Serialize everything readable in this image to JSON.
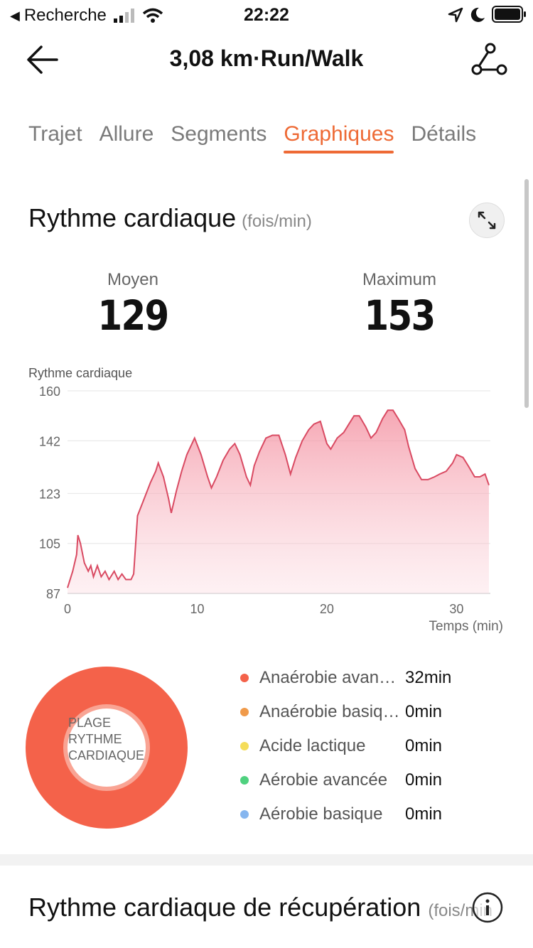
{
  "status_bar": {
    "back_app_label": "Recherche",
    "time": "22:22"
  },
  "header": {
    "title": "3,08 km·Run/Walk"
  },
  "tabs": [
    {
      "label": "Trajet"
    },
    {
      "label": "Allure"
    },
    {
      "label": "Segments"
    },
    {
      "label": "Graphiques"
    },
    {
      "label": "Détails"
    }
  ],
  "heart_rate": {
    "title": "Rythme cardiaque",
    "unit": "(fois/min)",
    "avg_label": "Moyen",
    "avg_value": "129",
    "max_label": "Maximum",
    "max_value": "153"
  },
  "chart_data": {
    "type": "area",
    "ylabel": "Rythme cardiaque",
    "xlabel": "Temps (min)",
    "ylim": [
      87,
      160
    ],
    "xlim": [
      0,
      32.5
    ],
    "y_ticks": [
      "160",
      "142",
      "123",
      "105",
      "87"
    ],
    "x_ticks": [
      "0",
      "10",
      "20",
      "30"
    ],
    "color": "#e8546a",
    "points": [
      [
        0,
        89
      ],
      [
        0.4,
        95
      ],
      [
        0.7,
        101
      ],
      [
        0.8,
        108
      ],
      [
        1.0,
        105
      ],
      [
        1.3,
        98
      ],
      [
        1.6,
        95
      ],
      [
        1.8,
        97
      ],
      [
        2.0,
        93
      ],
      [
        2.3,
        97
      ],
      [
        2.6,
        93
      ],
      [
        2.9,
        95
      ],
      [
        3.2,
        92
      ],
      [
        3.6,
        95
      ],
      [
        3.9,
        92
      ],
      [
        4.2,
        94
      ],
      [
        4.5,
        92
      ],
      [
        4.9,
        92
      ],
      [
        5.1,
        94
      ],
      [
        5.4,
        115
      ],
      [
        5.9,
        121
      ],
      [
        6.4,
        127
      ],
      [
        6.8,
        131
      ],
      [
        7.0,
        134
      ],
      [
        7.4,
        129
      ],
      [
        7.8,
        121
      ],
      [
        8.0,
        116
      ],
      [
        8.4,
        124
      ],
      [
        8.8,
        131
      ],
      [
        9.2,
        137
      ],
      [
        9.6,
        141
      ],
      [
        9.8,
        143
      ],
      [
        10.3,
        137
      ],
      [
        10.8,
        129
      ],
      [
        11.1,
        125
      ],
      [
        11.5,
        129
      ],
      [
        12.0,
        135
      ],
      [
        12.5,
        139
      ],
      [
        12.9,
        141
      ],
      [
        13.3,
        137
      ],
      [
        13.8,
        129
      ],
      [
        14.1,
        126
      ],
      [
        14.4,
        133
      ],
      [
        14.8,
        138
      ],
      [
        15.3,
        143
      ],
      [
        15.8,
        144
      ],
      [
        16.3,
        144
      ],
      [
        16.8,
        137
      ],
      [
        17.2,
        130
      ],
      [
        17.6,
        136
      ],
      [
        18.1,
        142
      ],
      [
        18.6,
        146
      ],
      [
        19.0,
        148
      ],
      [
        19.5,
        149
      ],
      [
        20.0,
        141
      ],
      [
        20.3,
        139
      ],
      [
        20.8,
        143
      ],
      [
        21.3,
        145
      ],
      [
        21.7,
        148
      ],
      [
        22.1,
        151
      ],
      [
        22.5,
        151
      ],
      [
        23.0,
        147
      ],
      [
        23.4,
        143
      ],
      [
        23.8,
        145
      ],
      [
        24.3,
        150
      ],
      [
        24.7,
        153
      ],
      [
        25.1,
        153
      ],
      [
        25.5,
        150
      ],
      [
        26.0,
        146
      ],
      [
        26.3,
        140
      ],
      [
        26.8,
        132
      ],
      [
        27.3,
        128
      ],
      [
        27.8,
        128
      ],
      [
        28.3,
        129
      ],
      [
        28.7,
        130
      ],
      [
        29.2,
        131
      ],
      [
        29.7,
        134
      ],
      [
        30.0,
        137
      ],
      [
        30.5,
        136
      ],
      [
        30.9,
        133
      ],
      [
        31.4,
        129
      ],
      [
        31.8,
        129
      ],
      [
        32.2,
        130
      ],
      [
        32.5,
        126
      ]
    ]
  },
  "zones": {
    "donut_label": "PLAGE RYTHME CARDIAQUE",
    "donut_color": "#f4624a",
    "items": [
      {
        "name": "Anaérobie avan…",
        "value": "32min",
        "color": "#f4624a"
      },
      {
        "name": "Anaérobie basiq…",
        "value": "0min",
        "color": "#f09a4a"
      },
      {
        "name": "Acide lactique",
        "value": "0min",
        "color": "#f5dd5a"
      },
      {
        "name": "Aérobie avancée",
        "value": "0min",
        "color": "#4fd17f"
      },
      {
        "name": "Aérobie basique",
        "value": "0min",
        "color": "#86b6ef"
      }
    ]
  },
  "recovery": {
    "title": "Rythme cardiaque de récupération",
    "unit": "(fois/min"
  }
}
